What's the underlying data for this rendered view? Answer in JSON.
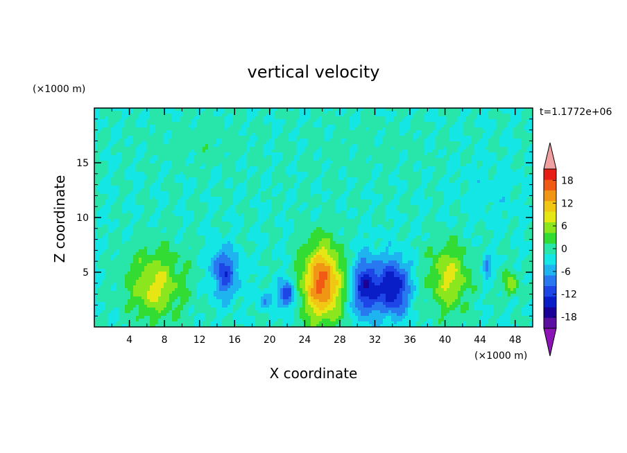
{
  "chart_data": {
    "type": "heatmap",
    "title": "vertical velocity",
    "xlabel": "X coordinate",
    "ylabel": "Z coordinate",
    "x_unit": "(×1000 m)",
    "y_unit": "(×1000 m)",
    "time_label": "t=1.1772e+06",
    "xlim": [
      0,
      50
    ],
    "ylim": [
      0,
      20
    ],
    "x_ticks": [
      "4",
      "8",
      "12",
      "16",
      "20",
      "24",
      "28",
      "32",
      "36",
      "40",
      "44",
      "48"
    ],
    "y_ticks": [
      "5",
      "10",
      "15"
    ],
    "x_tick_values": [
      4,
      8,
      12,
      16,
      20,
      24,
      28,
      32,
      36,
      40,
      44,
      48
    ],
    "y_tick_values": [
      5,
      10,
      15
    ],
    "colorbar": {
      "ticks": [
        "18",
        "12",
        "6",
        "0",
        "-6",
        "-12",
        "-18"
      ],
      "tick_values": [
        18,
        12,
        6,
        0,
        -6,
        -12,
        -18
      ],
      "levels": [
        -21,
        -18,
        -15,
        -12,
        -9,
        -6,
        -3,
        0,
        3,
        6,
        9,
        12,
        15,
        18,
        21
      ],
      "colors": [
        "#5a0fa0",
        "#1a0096",
        "#0a1ec8",
        "#1e46e6",
        "#2878f0",
        "#1eb4f0",
        "#14e6e6",
        "#28e6aa",
        "#32dc32",
        "#8ce61e",
        "#e6e614",
        "#f0c814",
        "#f09614",
        "#f05a14",
        "#e61e14"
      ],
      "over_color": "#f0a0a0",
      "under_color": "#8c14b4"
    },
    "features": [
      {
        "x": 7,
        "z": 4,
        "sx": 3.2,
        "sz": 3.2,
        "w": 9
      },
      {
        "x": 6.5,
        "z": 3.0,
        "sx": 1.4,
        "sz": 1.6,
        "w": 2
      },
      {
        "x": 15,
        "z": 4.8,
        "sx": 1.5,
        "sz": 2.2,
        "w": -10
      },
      {
        "x": 14,
        "z": 6.0,
        "sx": 1.0,
        "sz": 1.2,
        "w": -3
      },
      {
        "x": 22,
        "z": 3.0,
        "sx": 0.9,
        "sz": 1.4,
        "w": -12
      },
      {
        "x": 19.5,
        "z": 2.5,
        "sx": 0.8,
        "sz": 0.9,
        "w": -6
      },
      {
        "x": 26,
        "z": 4.0,
        "sx": 2.3,
        "sz": 3.5,
        "w": 19
      },
      {
        "x": 31,
        "z": 3.6,
        "sx": 1.6,
        "sz": 2.6,
        "w": -15
      },
      {
        "x": 34.2,
        "z": 3.6,
        "sx": 1.7,
        "sz": 2.6,
        "w": -15
      },
      {
        "x": 40.5,
        "z": 4.5,
        "sx": 2.2,
        "sz": 3.0,
        "w": 10
      },
      {
        "x": 44.8,
        "z": 5.5,
        "sx": 0.4,
        "sz": 0.9,
        "w": -9
      },
      {
        "x": 47.5,
        "z": 4.0,
        "sx": 0.8,
        "sz": 1.2,
        "w": 8
      },
      {
        "x": 30,
        "z": 16,
        "sx": 8,
        "sz": 3,
        "w": 1
      },
      {
        "x": 12,
        "z": 17,
        "sx": 6,
        "sz": 2.5,
        "w": 1.5
      },
      {
        "x": 45,
        "z": 12,
        "sx": 4,
        "sz": 3,
        "w": -1.5
      }
    ]
  }
}
